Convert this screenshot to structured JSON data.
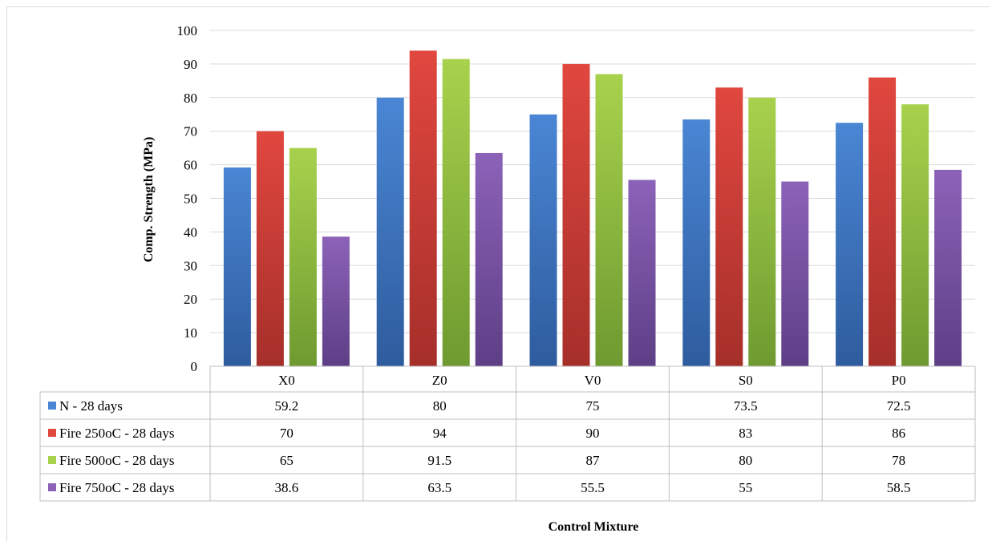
{
  "chart_data": {
    "type": "bar",
    "categories": [
      "X0",
      "Z0",
      "V0",
      "S0",
      "P0"
    ],
    "series": [
      {
        "name": "N - 28 days",
        "values": [
          59.2,
          80,
          75,
          73.5,
          72.5
        ],
        "color": "#4a86d4",
        "color_dark": "#2e5c9e"
      },
      {
        "name": "Fire 250oC - 28 days",
        "values": [
          70,
          94,
          90,
          83,
          86
        ],
        "color": "#e0473f",
        "color_dark": "#a62f2a"
      },
      {
        "name": "Fire 500oC - 28 days",
        "values": [
          65,
          91.5,
          87,
          80,
          78
        ],
        "color": "#a8d24c",
        "color_dark": "#6e9a30"
      },
      {
        "name": "Fire 750oC - 28 days",
        "values": [
          38.6,
          63.5,
          55.5,
          55,
          58.5
        ],
        "color": "#8b62b8",
        "color_dark": "#5e3f86"
      }
    ],
    "table_values": [
      [
        "59.2",
        "80",
        "75",
        "73.5",
        "72.5"
      ],
      [
        "70",
        "94",
        "90",
        "83",
        "86"
      ],
      [
        "65",
        "91.5",
        "87",
        "80",
        "78"
      ],
      [
        "38.6",
        "63.5",
        "55.5",
        "55",
        "58.5"
      ]
    ],
    "yticks": [
      "0",
      "10",
      "20",
      "30",
      "40",
      "50",
      "60",
      "70",
      "80",
      "90",
      "100"
    ],
    "ylim": [
      0,
      100
    ],
    "ylabel": "Comp. Strength (MPa)",
    "xlabel": "Control Mixture",
    "grid": true,
    "legend": "data-table"
  }
}
